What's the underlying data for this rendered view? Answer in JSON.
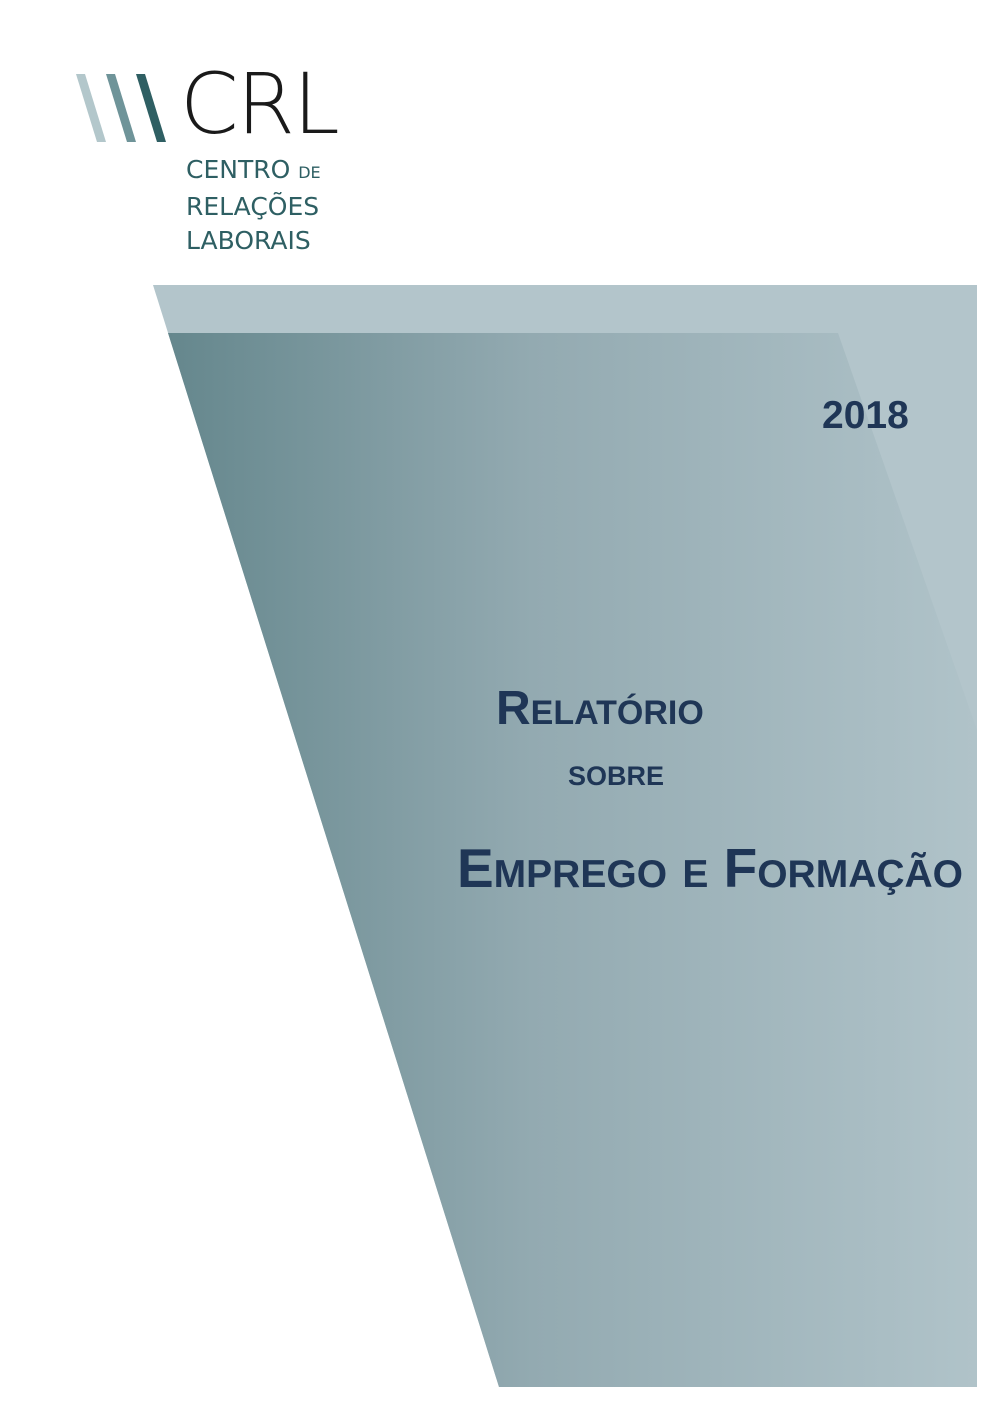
{
  "logo": {
    "acronym": "CRL",
    "line1": "CENTRO",
    "line1_small": "DE",
    "line2": "RELAÇÕES",
    "line3": "LABORAIS",
    "stripe_colors": [
      "#b3c7cb",
      "#6f9499",
      "#2f5f63"
    ],
    "text_color": "#2e5f63"
  },
  "cover": {
    "year": "2018",
    "title_line1": "Relatório",
    "title_line2": "sobre",
    "title_line3": "Emprego e Formação",
    "title_color": "#1f3656",
    "panel_light_color": "#b3c5cb",
    "panel_gradient": [
      "#65878d",
      "#b0c3c9"
    ]
  }
}
